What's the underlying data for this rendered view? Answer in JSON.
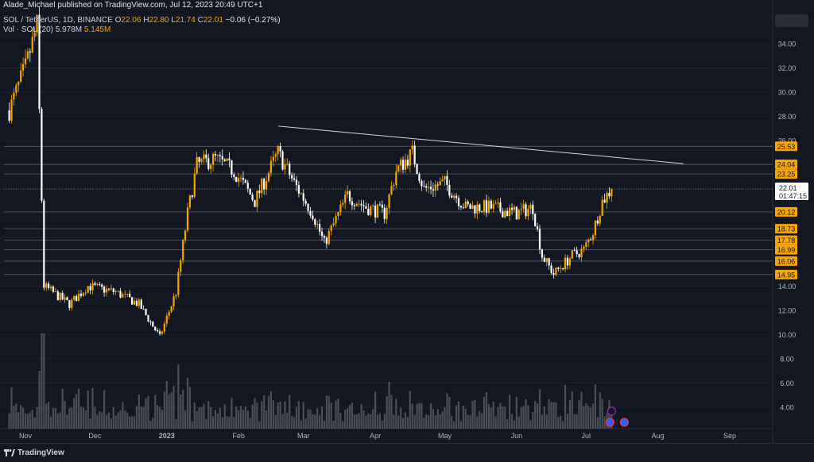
{
  "header": {
    "published": "Alade_Michael published on TradingView.com, Jul 12, 2023 20:49 UTC+1",
    "symbol": "SOL / TetherUS, 1D, BINANCE",
    "o_label": "O",
    "o_value": "22.06",
    "h_label": "H",
    "h_value": "22.80",
    "l_label": "L",
    "l_value": "21.74",
    "c_label": "C",
    "c_value": "22.01",
    "change": "−0.06 (−0.27%)",
    "vol_label": "Vol · SOL (20)",
    "vol_value1": "5.978M",
    "vol_value2": "5.145M"
  },
  "footer": {
    "brand": "TradingView"
  },
  "chart_data": {
    "type": "candlestick",
    "y_axis_ticks": [
      "34.00",
      "32.00",
      "30.00",
      "28.00",
      "26.00",
      "24.00",
      "22.00",
      "20.00",
      "18.00",
      "16.00",
      "14.00",
      "12.00",
      "10.00",
      "8.00",
      "6.00",
      "4.00"
    ],
    "x_axis_ticks": [
      "Nov",
      "Dec",
      "2023",
      "Feb",
      "Mar",
      "Apr",
      "May",
      "Jun",
      "Jul",
      "Aug",
      "Sep"
    ],
    "ylim": [
      2.0,
      36.0
    ],
    "horizontal_levels": [
      "25.53",
      "24.04",
      "23.25",
      "20.12",
      "18.73",
      "17.78",
      "16.99",
      "16.06",
      "14.95"
    ],
    "current_price": "22.01",
    "countdown": "01:47:15",
    "trendline": [
      {
        "date": "Feb 18",
        "price": 27.2
      },
      {
        "date": "Aug 12",
        "price": 24.1
      }
    ],
    "colors": {
      "up": "#f7a600",
      "down": "#ffffff",
      "volume": "#787b86",
      "background": "#131722",
      "level_line": "#787b86"
    },
    "ohlc_anchors": [
      {
        "date": "Oct 25",
        "close": 28.5
      },
      {
        "date": "Nov 1",
        "close": 32.0
      },
      {
        "date": "Nov 6",
        "close": 35.5
      },
      {
        "date": "Nov 9",
        "close": 14.0
      },
      {
        "date": "Nov 20",
        "close": 12.5
      },
      {
        "date": "Nov 28",
        "close": 14.0
      },
      {
        "date": "Dec 10",
        "close": 13.5
      },
      {
        "date": "Dec 20",
        "close": 12.5
      },
      {
        "date": "Dec 29",
        "close": 9.8
      },
      {
        "date": "Jan 5",
        "close": 13.5
      },
      {
        "date": "Jan 10",
        "close": 20.0
      },
      {
        "date": "Jan 14",
        "close": 24.0
      },
      {
        "date": "Jan 22",
        "close": 24.5
      },
      {
        "date": "Jan 30",
        "close": 23.5
      },
      {
        "date": "Feb 8",
        "close": 21.0
      },
      {
        "date": "Feb 18",
        "close": 25.0
      },
      {
        "date": "Feb 25",
        "close": 22.5
      },
      {
        "date": "Mar 5",
        "close": 20.0
      },
      {
        "date": "Mar 10",
        "close": 17.5
      },
      {
        "date": "Mar 20",
        "close": 21.5
      },
      {
        "date": "Mar 28",
        "close": 20.5
      },
      {
        "date": "Apr 5",
        "close": 20.0
      },
      {
        "date": "Apr 10",
        "close": 23.5
      },
      {
        "date": "Apr 17",
        "close": 25.0
      },
      {
        "date": "Apr 22",
        "close": 22.0
      },
      {
        "date": "May 1",
        "close": 22.5
      },
      {
        "date": "May 10",
        "close": 20.5
      },
      {
        "date": "May 20",
        "close": 20.5
      },
      {
        "date": "Jun 1",
        "close": 20.0
      },
      {
        "date": "Jun 8",
        "close": 20.5
      },
      {
        "date": "Jun 12",
        "close": 16.5
      },
      {
        "date": "Jun 17",
        "close": 15.0
      },
      {
        "date": "Jun 25",
        "close": 16.5
      },
      {
        "date": "Jun 30",
        "close": 17.0
      },
      {
        "date": "Jul 4",
        "close": 18.5
      },
      {
        "date": "Jul 8",
        "close": 21.0
      },
      {
        "date": "Jul 12",
        "close": 22.01
      }
    ]
  }
}
